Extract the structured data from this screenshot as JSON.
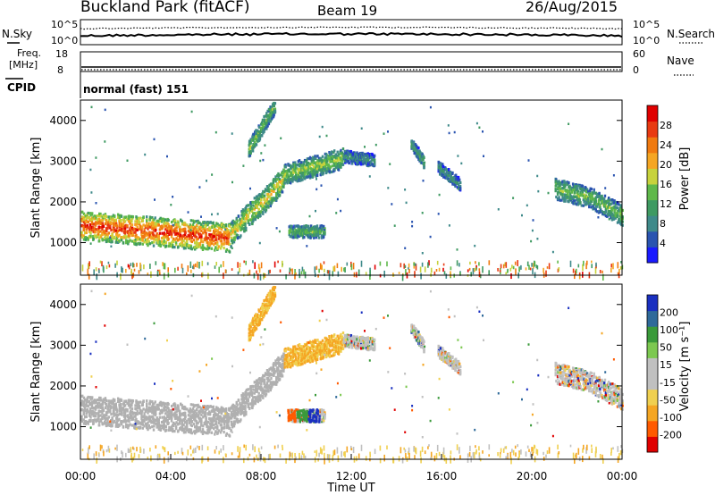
{
  "header": {
    "station": "Buckland Park (fitACF)",
    "beam": "Beam 19",
    "date": "26/Aug/2015"
  },
  "noise_panel": {
    "left_label": "N.Sky",
    "right_label": "N.Search",
    "left_ticks": [
      "10^5",
      "10^0"
    ],
    "right_ticks": [
      "10^5",
      "10^0"
    ]
  },
  "freq_panel": {
    "left_label_1": "Freq.",
    "left_label_2": "[MHz]",
    "right_label": "Nave",
    "left_ticks": [
      "18",
      "8"
    ],
    "right_ticks": [
      "60",
      "0"
    ]
  },
  "cpid_panel": {
    "label": "CPID",
    "text": "normal (fast) 151"
  },
  "colors": {
    "power_scale": [
      "#1a1aff",
      "#2a54b0",
      "#3f8a8a",
      "#3f9a62",
      "#5fb84a",
      "#c7d23c",
      "#f5a623",
      "#f07a10",
      "#e83a12",
      "#e00000"
    ],
    "velocity_scale": [
      "#e00000",
      "#ff5a00",
      "#f5a623",
      "#f0d050",
      "#c0c0c0",
      "#c0c0c0",
      "#7cc850",
      "#3a9a3a",
      "#2f6a9a",
      "#1a30c0"
    ],
    "ground_scatter": "#b0b0b0"
  },
  "chart_data": [
    {
      "type": "heatmap",
      "name": "power-panel",
      "xlabel": "",
      "ylabel": "Slant Range [km]",
      "xlim": [
        0,
        24
      ],
      "ylim": [
        200,
        4500
      ],
      "yticks": [
        1000,
        2000,
        3000,
        4000
      ],
      "colorbar_label": "Power [dB]",
      "colorbar_ticks": [
        "4",
        "8",
        "12",
        "16",
        "20",
        "24",
        "28"
      ],
      "colorbar_range": [
        0,
        30
      ],
      "features": [
        {
          "t0": 0.0,
          "t1": 6.6,
          "r_center": [
            1450,
            1400,
            1350,
            1300,
            1250,
            1200,
            1150
          ],
          "width": 700,
          "level": 27
        },
        {
          "t0": 6.6,
          "t1": 9.0,
          "r_center": [
            1200,
            1700,
            2100,
            2600
          ],
          "width": 600,
          "level": 18
        },
        {
          "t0": 9.0,
          "t1": 11.6,
          "r_center": [
            2700,
            2900,
            3100
          ],
          "width": 500,
          "level": 15
        },
        {
          "t0": 7.4,
          "t1": 8.6,
          "r_center": [
            3300,
            4400
          ],
          "width": 400,
          "level": 14
        },
        {
          "t0": 9.2,
          "t1": 10.8,
          "r_center": [
            1300,
            1300
          ],
          "width": 300,
          "level": 13
        },
        {
          "t0": 11.6,
          "t1": 13.0,
          "r_center": [
            3150,
            3050
          ],
          "width": 300,
          "level": 9
        },
        {
          "t0": 14.6,
          "t1": 15.2,
          "r_center": [
            3500,
            3000
          ],
          "width": 300,
          "level": 11
        },
        {
          "t0": 15.8,
          "t1": 16.8,
          "r_center": [
            2900,
            2450
          ],
          "width": 300,
          "level": 9
        },
        {
          "t0": 21.0,
          "t1": 24.0,
          "r_center": [
            2350,
            2150,
            1700
          ],
          "width": 500,
          "level": 14
        }
      ]
    },
    {
      "type": "heatmap",
      "name": "velocity-panel",
      "xlabel": "Time UT",
      "ylabel": "Slant Range [km]",
      "xlim": [
        0,
        24
      ],
      "xticks": [
        "00:00",
        "04:00",
        "08:00",
        "12:00",
        "16:00",
        "20:00",
        "00:00"
      ],
      "ylim": [
        200,
        4500
      ],
      "yticks": [
        1000,
        2000,
        3000,
        4000
      ],
      "colorbar_label": "Velocity [m s⁻¹]",
      "colorbar_ticks": [
        "-200",
        "-100",
        "-50",
        "-15",
        "15",
        "50",
        "100",
        "200"
      ],
      "colorbar_range": [
        -250,
        250
      ]
    }
  ]
}
